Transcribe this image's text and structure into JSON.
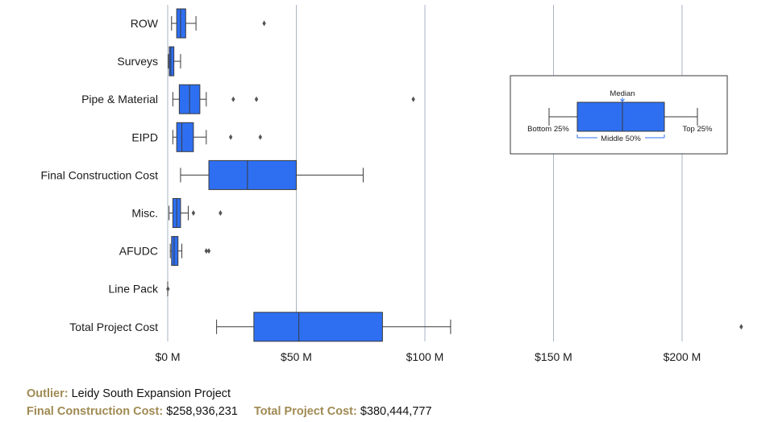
{
  "chart_data": {
    "type": "boxplot",
    "orientation": "horizontal",
    "x_ticks": [
      {
        "value": 0,
        "label": "$0 M"
      },
      {
        "value": 50,
        "label": "$50 M"
      },
      {
        "value": 100,
        "label": "$100 M"
      },
      {
        "value": 150,
        "label": "$150 M"
      },
      {
        "value": 200,
        "label": "$200 M"
      }
    ],
    "xlim": [
      0,
      225
    ],
    "grid": "vertical",
    "colors": {
      "box_fill": "#2e6ff2",
      "box_stroke": "#3a3a3a",
      "grid": "#aab4c4",
      "accent": "#a08a52"
    },
    "series": [
      {
        "category": "ROW",
        "min": 1.5,
        "q1": 3.5,
        "median": 5,
        "q3": 7,
        "max": 11,
        "outliers": [
          37.5
        ]
      },
      {
        "category": "Surveys",
        "min": 0.3,
        "q1": 0.6,
        "median": 1.2,
        "q3": 2.4,
        "max": 5,
        "outliers": []
      },
      {
        "category": "Pipe & Material",
        "min": 2,
        "q1": 4.5,
        "median": 8.5,
        "q3": 12.5,
        "max": 15,
        "outliers": [
          25.5,
          34.5,
          95.5
        ]
      },
      {
        "category": "EIPD",
        "min": 2,
        "q1": 3.5,
        "median": 5.5,
        "q3": 10,
        "max": 15,
        "outliers": [
          24.5,
          36
        ]
      },
      {
        "category": "Final Construction Cost",
        "min": 5,
        "q1": 16,
        "median": 31,
        "q3": 50,
        "max": 76,
        "outliers": []
      },
      {
        "category": "Misc.",
        "min": 0.5,
        "q1": 2,
        "median": 3.5,
        "q3": 5,
        "max": 8,
        "outliers": [
          10,
          20.5
        ]
      },
      {
        "category": "AFUDC",
        "min": 1,
        "q1": 1.5,
        "median": 2.5,
        "q3": 4,
        "max": 5.5,
        "outliers": [
          15,
          16
        ]
      },
      {
        "category": "Line Pack",
        "min": 0,
        "q1": 0,
        "median": 0,
        "q3": 0,
        "max": 0,
        "outliers": [
          0.1
        ]
      },
      {
        "category": "Total Project Cost",
        "min": 19,
        "q1": 33.5,
        "median": 51,
        "q3": 83.5,
        "max": 110,
        "outliers": [
          223
        ]
      }
    ]
  },
  "legend": {
    "median": "Median",
    "bottom": "Bottom 25%",
    "top": "Top 25%",
    "middle": "Middle 50%"
  },
  "footer": {
    "outlier_label": "Outlier:",
    "outlier_value": "Leidy South Expansion Project",
    "construction_label": "Final Construction Cost:",
    "construction_value": "$258,936,231",
    "total_label": "Total Project Cost:",
    "total_value": "$380,444,777"
  }
}
